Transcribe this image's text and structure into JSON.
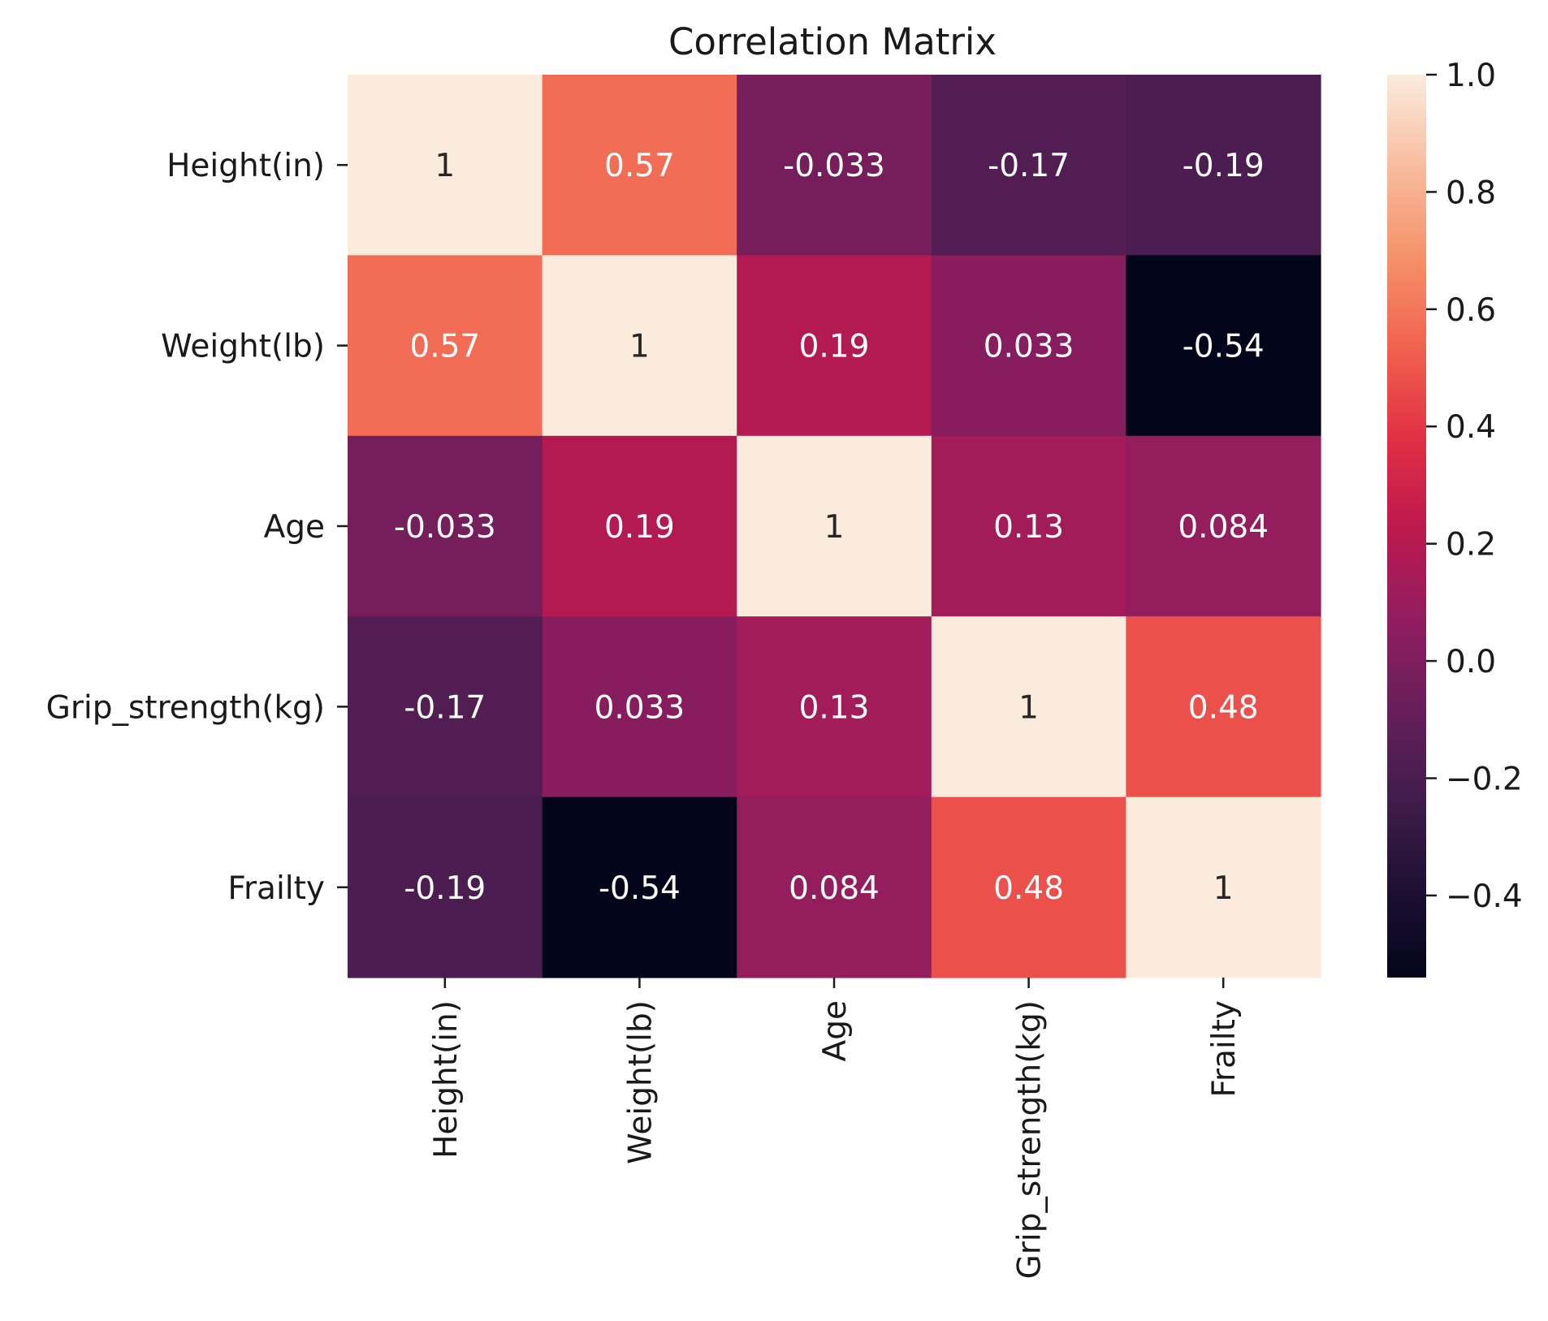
{
  "chart_data": {
    "type": "heatmap",
    "title": "Correlation Matrix",
    "row_labels": [
      "Height(in)",
      "Weight(lb)",
      "Age",
      "Grip_strength(kg)",
      "Frailty"
    ],
    "col_labels": [
      "Height(in)",
      "Weight(lb)",
      "Age",
      "Grip_strength(kg)",
      "Frailty"
    ],
    "values": [
      [
        1,
        0.57,
        -0.033,
        -0.17,
        -0.19
      ],
      [
        0.57,
        1,
        0.19,
        0.033,
        -0.54
      ],
      [
        -0.033,
        0.19,
        1,
        0.13,
        0.084
      ],
      [
        -0.17,
        0.033,
        0.13,
        1,
        0.48
      ],
      [
        -0.19,
        -0.54,
        0.084,
        0.48,
        1
      ]
    ],
    "cell_labels": [
      [
        "1",
        "0.57",
        "-0.033",
        "-0.17",
        "-0.19"
      ],
      [
        "0.57",
        "1",
        "0.19",
        "0.033",
        "-0.54"
      ],
      [
        "-0.033",
        "0.19",
        "1",
        "0.13",
        "0.084"
      ],
      [
        "-0.17",
        "0.033",
        "0.13",
        "1",
        "0.48"
      ],
      [
        "-0.19",
        "-0.54",
        "0.084",
        "0.48",
        "1"
      ]
    ],
    "colormap": "rocket",
    "colorbar": {
      "vmin": -0.54,
      "vmax": 1.0,
      "ticks": [
        1.0,
        0.8,
        0.6,
        0.4,
        0.2,
        0.0,
        -0.2,
        -0.4
      ],
      "tick_labels": [
        "1.0",
        "0.8",
        "0.6",
        "0.4",
        "0.2",
        "0.0",
        "−0.2",
        "−0.4"
      ],
      "position": "right"
    },
    "xlabel": "",
    "ylabel": ""
  }
}
